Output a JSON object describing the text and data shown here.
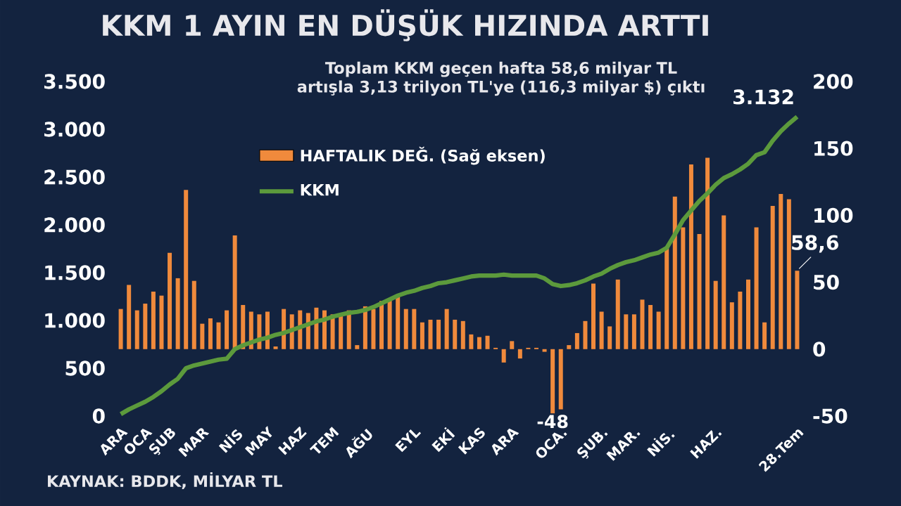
{
  "chart_data": {
    "type": "bar",
    "title": "KKM 1 AYIN EN DÜŞÜK HIZINDA ARTTI",
    "subtitle": "Toplam KKM geçen hafta 58,6 milyar TL artışla 3,13 trilyon TL'ye (116,3 milyar $) çıktı",
    "annotations": [
      "KAYNAK: BDDK, MİLYAR TL"
    ],
    "categories": [
      "ARA",
      null,
      null,
      "OCA",
      null,
      null,
      "ŞUB",
      null,
      null,
      null,
      "MAR",
      null,
      null,
      null,
      "NİS",
      null,
      null,
      null,
      "MAY",
      null,
      null,
      null,
      "HAZ",
      null,
      null,
      null,
      "TEM",
      null,
      null,
      null,
      "AĞU",
      null,
      null,
      null,
      null,
      null,
      "EYL",
      null,
      null,
      null,
      "EKİ",
      null,
      null,
      null,
      "KAS",
      null,
      null,
      null,
      "ARA",
      null,
      null,
      null,
      null,
      null,
      "OCA.",
      null,
      null,
      null,
      null,
      "ŞUB.",
      null,
      null,
      null,
      "MAR.",
      null,
      null,
      null,
      "NİS.",
      null,
      null,
      null,
      null,
      null,
      "HAZ.",
      null,
      null,
      null,
      null,
      null,
      null,
      null,
      null,
      null,
      "28.Tem"
    ],
    "series": [
      {
        "name": "HAFTALIK DEĞ. (Sağ eksen)",
        "axis": "y2",
        "color": "#f08a3c",
        "values": [
          30,
          48,
          29,
          34,
          43,
          40,
          72,
          53,
          119,
          51,
          19,
          23,
          20,
          29,
          85,
          33,
          28,
          26,
          28,
          2,
          30,
          26,
          29,
          27,
          31,
          29,
          26,
          25,
          29,
          3,
          32,
          30,
          36,
          37,
          39,
          30,
          30,
          20,
          22,
          22,
          30,
          22,
          21,
          11,
          9,
          10,
          1,
          -10,
          6,
          -7,
          1,
          1,
          -2,
          -48,
          -45,
          3,
          12,
          21,
          49,
          28,
          17,
          52,
          26,
          26,
          37,
          33,
          28,
          76,
          114,
          91,
          138,
          86,
          143,
          51,
          100,
          35,
          43,
          52,
          91,
          20,
          107,
          116,
          112,
          58.6
        ],
        "value_labels": [
          null,
          null,
          null,
          null,
          null,
          null,
          null,
          null,
          null,
          null,
          null,
          null,
          null,
          null,
          null,
          null,
          null,
          null,
          null,
          null,
          null,
          null,
          null,
          null,
          null,
          null,
          null,
          null,
          null,
          null,
          null,
          null,
          null,
          null,
          null,
          null,
          null,
          null,
          null,
          null,
          null,
          null,
          null,
          null,
          null,
          null,
          null,
          null,
          null,
          null,
          null,
          null,
          null,
          "-48",
          null,
          null,
          null,
          null,
          null,
          null,
          null,
          null,
          null,
          null,
          null,
          null,
          null,
          null,
          null,
          null,
          null,
          null,
          null,
          null,
          null,
          null,
          null,
          null,
          null,
          null,
          null,
          null,
          null,
          "58,6"
        ]
      },
      {
        "name": "KKM",
        "type": "line",
        "color": "#5c9a3c",
        "values": [
          20,
          70,
          110,
          150,
          200,
          260,
          330,
          390,
          500,
          530,
          550,
          570,
          590,
          600,
          700,
          740,
          770,
          800,
          820,
          850,
          870,
          900,
          930,
          960,
          990,
          1010,
          1040,
          1060,
          1080,
          1090,
          1110,
          1140,
          1180,
          1220,
          1260,
          1290,
          1310,
          1340,
          1360,
          1390,
          1400,
          1420,
          1440,
          1460,
          1470,
          1470,
          1470,
          1480,
          1470,
          1470,
          1470,
          1470,
          1440,
          1380,
          1360,
          1370,
          1390,
          1420,
          1460,
          1490,
          1540,
          1580,
          1610,
          1630,
          1660,
          1690,
          1710,
          1760,
          1900,
          2050,
          2150,
          2250,
          2330,
          2420,
          2490,
          2530,
          2580,
          2640,
          2730,
          2760,
          2880,
          2980,
          3060,
          3132
        ],
        "value_labels": [
          null,
          null,
          null,
          null,
          null,
          null,
          null,
          null,
          null,
          null,
          null,
          null,
          null,
          null,
          null,
          null,
          null,
          null,
          null,
          null,
          null,
          null,
          null,
          null,
          null,
          null,
          null,
          null,
          null,
          null,
          null,
          null,
          null,
          null,
          null,
          null,
          null,
          null,
          null,
          null,
          null,
          null,
          null,
          null,
          null,
          null,
          null,
          null,
          null,
          null,
          null,
          null,
          null,
          null,
          null,
          null,
          null,
          null,
          null,
          null,
          null,
          null,
          null,
          null,
          null,
          null,
          null,
          null,
          null,
          null,
          null,
          null,
          null,
          null,
          null,
          null,
          null,
          null,
          null,
          null,
          null,
          null,
          null,
          "3.132"
        ]
      }
    ],
    "ylim": [
      0,
      3500
    ],
    "yticks": [
      0,
      500,
      {
        "value": 1000,
        "label": "1.000"
      },
      {
        "value": 1500,
        "label": "1.500"
      },
      {
        "value": 2000,
        "label": "2.000"
      },
      {
        "value": 2500,
        "label": "2.500"
      },
      {
        "value": 3000,
        "label": "3.000"
      },
      {
        "value": 3500,
        "label": "3.500"
      }
    ],
    "y2lim": [
      -50,
      200
    ],
    "y2ticks": [
      -50,
      0,
      50,
      100,
      150,
      200
    ],
    "legend": "top left",
    "grid": false,
    "marker": "none",
    "line_style": "solid"
  }
}
